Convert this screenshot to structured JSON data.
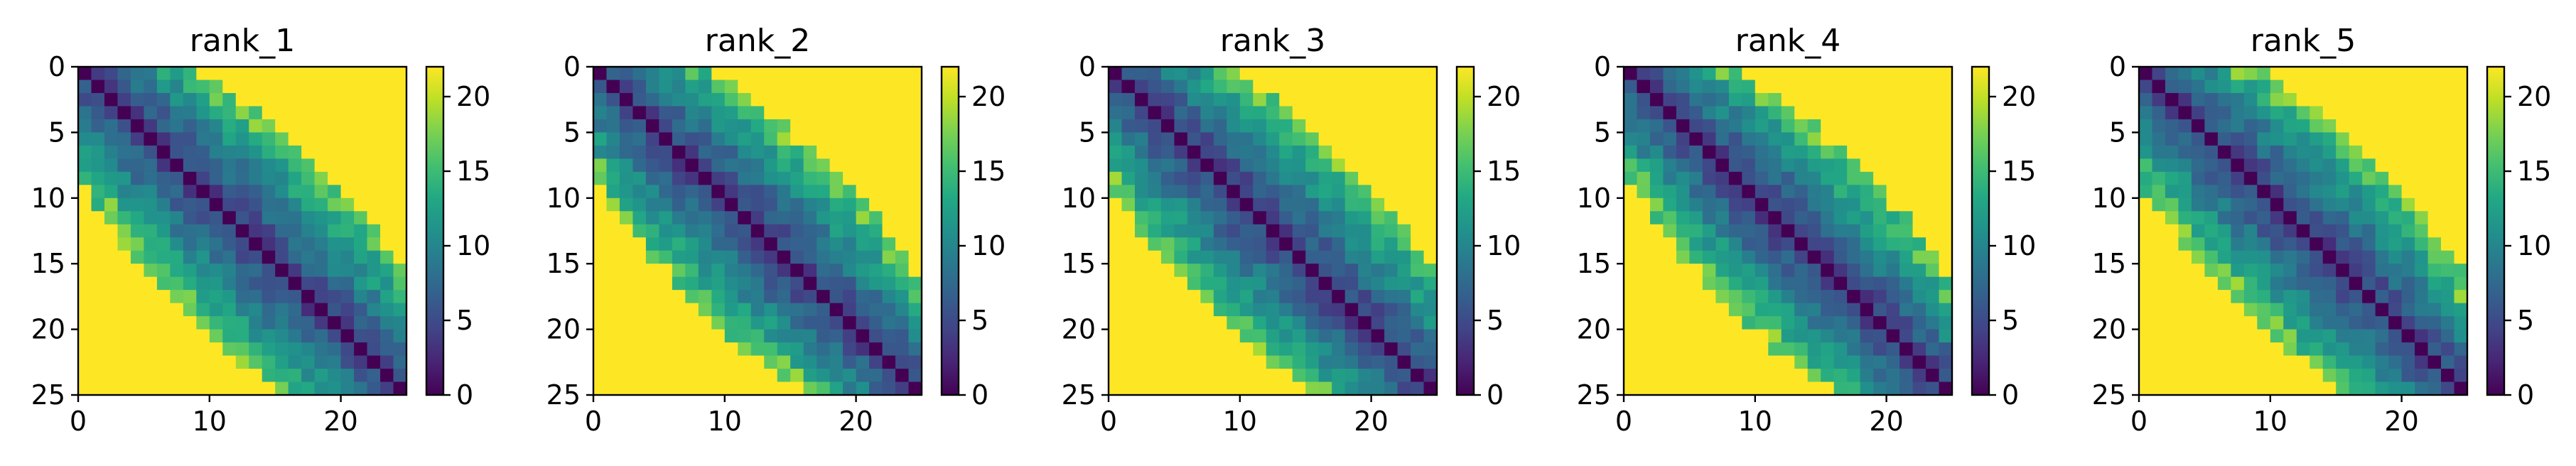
{
  "chart_data": [
    {
      "type": "heatmap",
      "title": "rank_1",
      "matrix_size": 25,
      "xticks": [
        0,
        10,
        20
      ],
      "yticks": [
        0,
        5,
        10,
        15,
        20,
        25
      ],
      "colorbar": {
        "min": 0,
        "max": 22,
        "ticks": [
          0,
          5,
          10,
          15,
          20
        ],
        "colormap": "viridis"
      },
      "band_half_width": [
        6,
        7,
        7,
        8,
        8,
        9,
        9,
        10,
        10,
        10,
        11,
        11,
        11,
        11,
        11,
        11,
        10,
        10,
        10,
        9,
        9,
        8,
        8,
        7,
        7
      ],
      "grid": false
    },
    {
      "type": "heatmap",
      "title": "rank_2",
      "matrix_size": 25,
      "xticks": [
        0,
        10,
        20
      ],
      "yticks": [
        0,
        5,
        10,
        15,
        20,
        25
      ],
      "colorbar": {
        "min": 0,
        "max": 22,
        "ticks": [
          0,
          5,
          10,
          15,
          20
        ],
        "colormap": "viridis"
      },
      "band_half_width": [
        6,
        7,
        7,
        7,
        8,
        8,
        9,
        9,
        10,
        10,
        11,
        11,
        11,
        11,
        11,
        10,
        10,
        10,
        9,
        9,
        8,
        8,
        7,
        7,
        6
      ],
      "grid": false
    },
    {
      "type": "heatmap",
      "title": "rank_3",
      "matrix_size": 25,
      "xticks": [
        0,
        10,
        20
      ],
      "yticks": [
        0,
        5,
        10,
        15,
        20,
        25
      ],
      "colorbar": {
        "min": 0,
        "max": 22,
        "ticks": [
          0,
          5,
          10,
          15,
          20
        ],
        "colormap": "viridis"
      },
      "band_half_width": [
        7,
        7,
        8,
        8,
        9,
        9,
        10,
        10,
        11,
        11,
        11,
        11,
        12,
        11,
        11,
        11,
        11,
        10,
        10,
        9,
        9,
        8,
        8,
        7,
        7
      ],
      "grid": false
    },
    {
      "type": "heatmap",
      "title": "rank_4",
      "matrix_size": 25,
      "xticks": [
        0,
        10,
        20
      ],
      "yticks": [
        0,
        5,
        10,
        15,
        20,
        25
      ],
      "colorbar": {
        "min": 0,
        "max": 22,
        "ticks": [
          0,
          5,
          10,
          15,
          20
        ],
        "colormap": "viridis"
      },
      "band_half_width": [
        6,
        6,
        7,
        7,
        8,
        8,
        9,
        9,
        10,
        10,
        10,
        11,
        11,
        11,
        11,
        10,
        10,
        10,
        9,
        9,
        8,
        8,
        7,
        7,
        6
      ],
      "grid": false
    },
    {
      "type": "heatmap",
      "title": "rank_5",
      "matrix_size": 25,
      "xticks": [
        0,
        10,
        20
      ],
      "yticks": [
        0,
        5,
        10,
        15,
        20,
        25
      ],
      "colorbar": {
        "min": 0,
        "max": 22,
        "ticks": [
          0,
          5,
          10,
          15,
          20
        ],
        "colormap": "viridis"
      },
      "band_half_width": [
        6,
        7,
        7,
        8,
        8,
        9,
        9,
        10,
        10,
        11,
        11,
        11,
        11,
        11,
        11,
        11,
        10,
        10,
        9,
        9,
        8,
        8,
        7,
        7,
        6
      ],
      "grid": false
    }
  ]
}
